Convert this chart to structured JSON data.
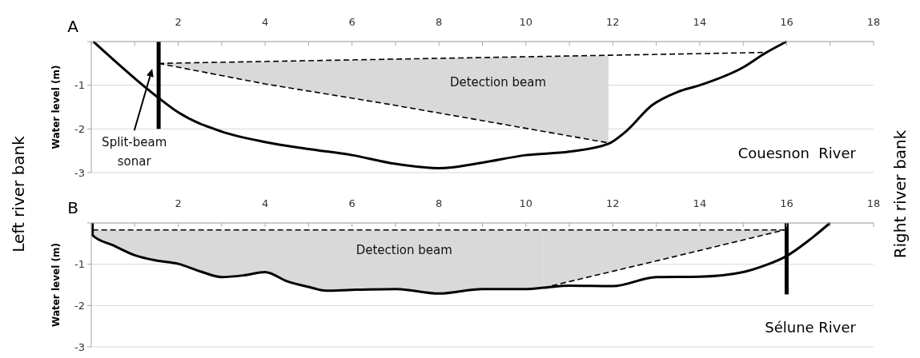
{
  "chart_data": [
    {
      "type": "line",
      "title": "A",
      "ylabel": "Water level (m)",
      "xlim": [
        0,
        18
      ],
      "ylim": [
        -3,
        0
      ],
      "xticks": [
        {
          "value": 0,
          "label": null
        },
        {
          "value": 1,
          "label": null
        },
        2,
        {
          "value": 3,
          "label": null
        },
        4,
        {
          "value": 5,
          "label": null
        },
        6,
        {
          "value": 7,
          "label": null
        },
        8,
        {
          "value": 9,
          "label": null
        },
        10,
        {
          "value": 11,
          "label": null
        },
        12,
        {
          "value": 13,
          "label": null
        },
        14,
        {
          "value": 15,
          "label": null
        },
        16,
        {
          "value": 17,
          "label": null
        },
        18
      ],
      "yticks": [
        -3,
        -2,
        -1,
        {
          "value": 0,
          "label": null
        }
      ],
      "grid": "y",
      "series": [
        {
          "type": "line",
          "color": "#000000",
          "line_style": "dashed",
          "x": [
            1.55,
            15.45
          ],
          "values": [
            -0.5,
            -0.25
          ]
        },
        {
          "type": "line",
          "color": "#000000",
          "line_style": "dashed",
          "x": [
            1.55,
            4,
            6.7,
            9,
            11.9
          ],
          "values": [
            -0.5,
            -0.97,
            -1.41,
            -1.81,
            -2.32
          ],
          "lower": [
            -0.5,
            -0.97,
            -1.41,
            -1.81,
            -2.32
          ],
          "upper": [
            -0.5,
            -0.46,
            -0.41,
            -0.37,
            -0.32
          ]
        },
        {
          "type": "line",
          "color": "#000000",
          "line_style": "solid",
          "x": [
            0.05,
            1.55,
            2,
            3,
            4,
            5,
            6,
            7,
            8,
            9,
            10,
            11,
            11.9,
            12.3,
            12.9,
            13.5,
            14,
            15,
            15.5,
            16
          ],
          "values": [
            0,
            -1.29,
            -1.62,
            -2.06,
            -2.3,
            -2.46,
            -2.6,
            -2.8,
            -2.9,
            -2.77,
            -2.6,
            -2.52,
            -2.34,
            -2.06,
            -1.46,
            -1.15,
            -1.0,
            -0.59,
            -0.27,
            0
          ]
        },
        {
          "type": "line",
          "color": "#000000",
          "line_style": "solid",
          "x": [
            1.55,
            1.55
          ],
          "values": [
            0,
            -2
          ]
        }
      ],
      "annotations": [
        "Split-beam sonar",
        "Detection beam",
        "Couesnon  River",
        "Left river bank",
        "Right river bank"
      ]
    },
    {
      "type": "line",
      "title": "B",
      "ylabel": "Water level (m)",
      "xlim": [
        0,
        18
      ],
      "ylim": [
        -3,
        0
      ],
      "xticks": [
        {
          "value": 0,
          "label": null
        },
        {
          "value": 1,
          "label": null
        },
        2,
        {
          "value": 3,
          "label": null
        },
        4,
        {
          "value": 5,
          "label": null
        },
        6,
        {
          "value": 7,
          "label": null
        },
        8,
        {
          "value": 9,
          "label": null
        },
        10,
        {
          "value": 11,
          "label": null
        },
        12,
        {
          "value": 13,
          "label": null
        },
        14,
        {
          "value": 15,
          "label": null
        },
        16,
        {
          "value": 17,
          "label": null
        },
        18
      ],
      "yticks": [
        -3,
        -2,
        -1,
        {
          "value": 0,
          "label": null
        }
      ],
      "grid": "y",
      "series": [
        {
          "type": "line",
          "color": "#000000",
          "line_style": "dashed",
          "x": [
            0.03,
            15.95
          ],
          "values": [
            -0.17,
            -0.17
          ]
        },
        {
          "type": "line",
          "color": "#000000",
          "line_style": "dashed",
          "x": [
            10.4,
            13.2,
            15.95
          ],
          "values": [
            -1.57,
            -0.87,
            -0.17
          ],
          "lower": [
            -1.57,
            -0.87,
            -0.17
          ],
          "upper": [
            -0.17,
            -0.17,
            -0.17
          ]
        },
        {
          "type": "line",
          "color": "#000000",
          "line_style": "solid",
          "x": [
            0.03,
            0.03,
            0.5,
            1,
            1.5,
            2,
            2.5,
            3,
            3.5,
            4,
            4.5,
            5,
            5.4,
            6,
            7,
            8,
            9,
            10,
            10.4,
            11,
            12,
            13,
            14,
            15,
            15.5,
            16,
            16.5,
            17
          ],
          "values": [
            0,
            -0.3,
            -0.54,
            -0.78,
            -0.91,
            -0.99,
            -1.17,
            -1.31,
            -1.27,
            -1.19,
            -1.41,
            -1.55,
            -1.64,
            -1.62,
            -1.6,
            -1.71,
            -1.6,
            -1.6,
            -1.57,
            -1.52,
            -1.53,
            -1.31,
            -1.3,
            -1.19,
            -1.03,
            -0.8,
            -0.43,
            0
          ],
          "lower": [
            -0.17,
            -0.3,
            -0.54,
            -0.78,
            -0.91,
            -0.99,
            -1.17,
            -1.31,
            -1.27,
            -1.19,
            -1.41,
            -1.55,
            -1.64,
            -1.62,
            -1.6,
            -1.71,
            -1.6,
            -1.6,
            -1.57,
            null,
            null,
            null,
            null,
            null,
            null,
            null,
            null,
            null
          ],
          "upper": [
            -0.17,
            -0.17,
            -0.17,
            -0.17,
            -0.17,
            -0.17,
            -0.17,
            -0.17,
            -0.17,
            -0.17,
            -0.17,
            -0.17,
            -0.17,
            -0.17,
            -0.17,
            -0.17,
            -0.17,
            -0.17,
            -0.17,
            null,
            null,
            null,
            null,
            null,
            null,
            null,
            null,
            null
          ]
        },
        {
          "type": "line",
          "color": "#000000",
          "line_style": "solid",
          "x": [
            16,
            16
          ],
          "values": [
            0,
            -1.73
          ]
        }
      ],
      "annotations": [
        "Detection beam",
        "Sélune River"
      ]
    }
  ]
}
